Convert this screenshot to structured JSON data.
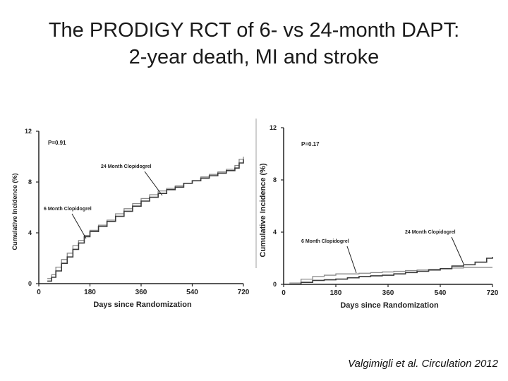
{
  "slide": {
    "title_line1": "The PRODIGY RCT of 6- vs 24-month DAPT:",
    "title_line2": "2-year death, MI and stroke",
    "citation": "Valgimigli et al. Circulation 2012"
  },
  "colors": {
    "series_dark": "#3a3a3a",
    "series_light": "#8a8a8a",
    "axis": "#222222"
  },
  "chart_data": [
    {
      "type": "line",
      "title": "",
      "xlabel": "Days since Randomization",
      "ylabel": "Cumulative Incidence (%)",
      "xlim": [
        0,
        720
      ],
      "ylim": [
        0,
        12
      ],
      "xticks": [
        0,
        180,
        360,
        540,
        720
      ],
      "yticks": [
        0,
        4,
        8,
        12
      ],
      "pvalue": "P=0.91",
      "annotations": [
        "24 Month Clopidogrel",
        "6 Month Clopidogrel"
      ],
      "series": [
        {
          "name": "6 Month Clopidogrel",
          "x": [
            30,
            45,
            60,
            80,
            100,
            120,
            140,
            160,
            180,
            210,
            240,
            270,
            300,
            330,
            360,
            390,
            420,
            450,
            480,
            510,
            540,
            570,
            600,
            630,
            660,
            690,
            705,
            720
          ],
          "values": [
            0.4,
            0.7,
            1.3,
            1.9,
            2.4,
            3.0,
            3.4,
            3.8,
            4.2,
            4.6,
            5.0,
            5.5,
            5.9,
            6.3,
            6.7,
            7.0,
            7.3,
            7.5,
            7.7,
            7.9,
            8.1,
            8.4,
            8.6,
            8.8,
            9.0,
            9.3,
            9.8,
            10.0
          ]
        },
        {
          "name": "24 Month Clopidogrel",
          "x": [
            30,
            45,
            60,
            80,
            100,
            120,
            140,
            160,
            180,
            210,
            240,
            270,
            300,
            330,
            360,
            390,
            420,
            450,
            480,
            510,
            540,
            570,
            600,
            630,
            660,
            690,
            705,
            720
          ],
          "values": [
            0.2,
            0.5,
            1.0,
            1.6,
            2.1,
            2.7,
            3.2,
            3.7,
            4.1,
            4.5,
            4.9,
            5.3,
            5.7,
            6.1,
            6.5,
            6.8,
            7.1,
            7.4,
            7.6,
            7.9,
            8.1,
            8.3,
            8.5,
            8.7,
            8.9,
            9.1,
            9.5,
            9.8
          ]
        }
      ]
    },
    {
      "type": "line",
      "title": "",
      "xlabel": "Days since Randomization",
      "ylabel": "Cumulative Incidence (%)",
      "xlim": [
        0,
        720
      ],
      "ylim": [
        0,
        12
      ],
      "xticks": [
        0,
        180,
        360,
        540,
        720
      ],
      "yticks": [
        0,
        4,
        8,
        12
      ],
      "pvalue": "P=0.17",
      "annotations": [
        "24 Month Clopidogrel",
        "6 Month Clopidogrel"
      ],
      "series": [
        {
          "name": "6 Month Clopidogrel",
          "x": [
            20,
            60,
            100,
            140,
            180,
            220,
            260,
            300,
            340,
            380,
            420,
            460,
            500,
            540,
            580,
            620,
            660,
            700,
            720
          ],
          "values": [
            0.1,
            0.4,
            0.6,
            0.7,
            0.8,
            0.8,
            0.85,
            0.9,
            0.95,
            1.0,
            1.05,
            1.1,
            1.15,
            1.2,
            1.25,
            1.3,
            1.3,
            1.3,
            1.3
          ]
        },
        {
          "name": "24 Month Clopidogrel",
          "x": [
            20,
            60,
            100,
            140,
            180,
            220,
            260,
            300,
            340,
            380,
            420,
            460,
            500,
            540,
            580,
            620,
            660,
            700,
            720
          ],
          "values": [
            0.0,
            0.15,
            0.3,
            0.35,
            0.4,
            0.5,
            0.6,
            0.65,
            0.7,
            0.8,
            0.9,
            1.0,
            1.1,
            1.2,
            1.4,
            1.5,
            1.7,
            2.0,
            2.1
          ]
        }
      ]
    }
  ]
}
